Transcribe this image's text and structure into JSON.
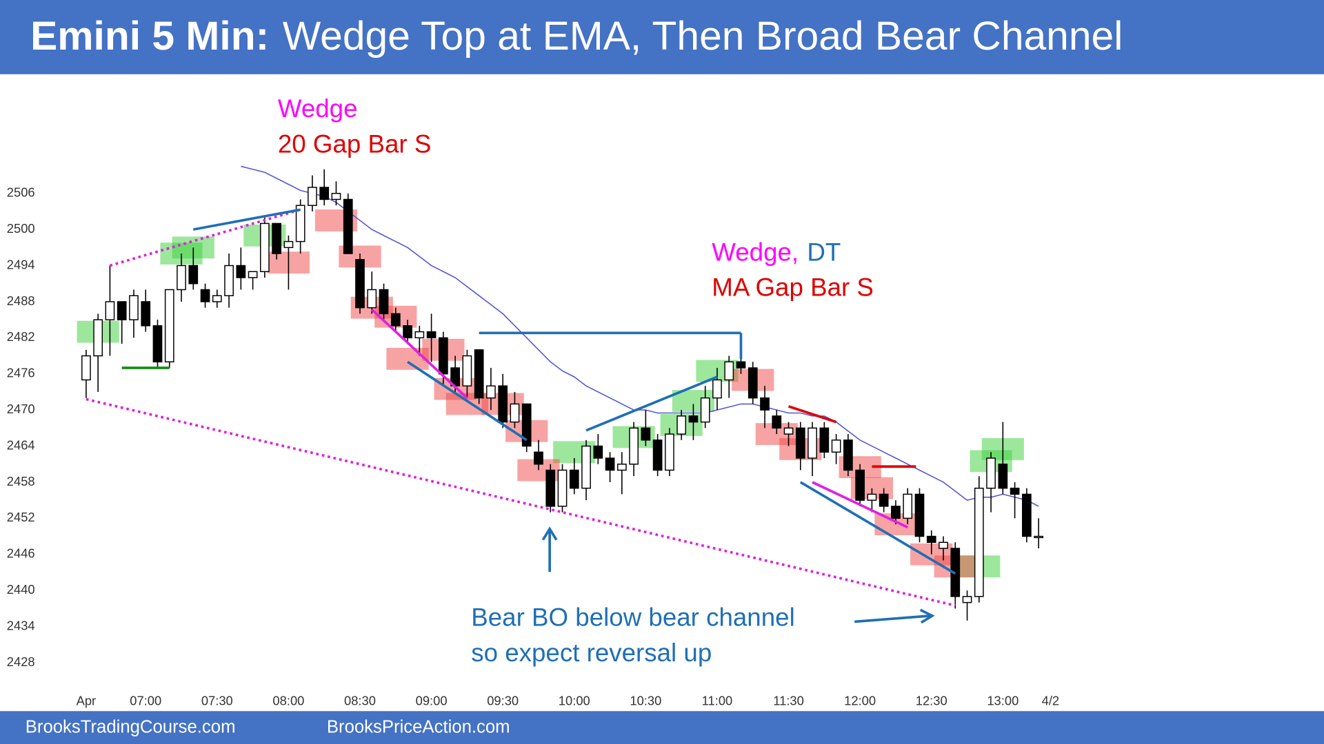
{
  "chart_data": {
    "type": "candlestick",
    "title_lead": "Emini 5 Min:",
    "title": "Wedge Top at EMA, Then Broad Bear Channel",
    "categories": [
      "Apr",
      null,
      null,
      null,
      null,
      "07:00",
      null,
      null,
      null,
      null,
      null,
      "07:30",
      null,
      null,
      null,
      null,
      null,
      "08:00",
      null,
      null,
      null,
      null,
      null,
      "08:30",
      null,
      null,
      null,
      null,
      null,
      "09:00",
      null,
      null,
      null,
      null,
      null,
      "09:30",
      null,
      null,
      null,
      null,
      null,
      "10:00",
      null,
      null,
      null,
      null,
      null,
      "10:30",
      null,
      null,
      null,
      null,
      null,
      "11:00",
      null,
      null,
      null,
      null,
      null,
      "11:30",
      null,
      null,
      null,
      null,
      null,
      "12:00",
      null,
      null,
      null,
      null,
      null,
      "12:30",
      null,
      null,
      null,
      null,
      null,
      "13:00",
      null,
      null,
      null
    ],
    "next_day_label": "4/2",
    "open": [
      2475,
      2479,
      2485,
      2488,
      2485,
      2488,
      2484,
      2478,
      2490,
      2494,
      2490,
      2488,
      2489,
      2494,
      2492,
      2493,
      2501,
      2497,
      2498,
      2504,
      2507,
      2505,
      2505,
      2495,
      2487,
      2490,
      2486,
      2484,
      2482,
      2483,
      2482,
      2477,
      2474,
      2480,
      2472,
      2474,
      2468,
      2471,
      2463,
      2460,
      2454,
      2460,
      2457,
      2464,
      2462,
      2460,
      2461,
      2467,
      2465,
      2460,
      2466,
      2469,
      2468,
      2472,
      2475,
      2478,
      2477,
      2472,
      2469,
      2466,
      2467,
      2462,
      2467,
      2463,
      2465,
      2460,
      2455,
      2456,
      2454,
      2452,
      2456,
      2449,
      2447,
      2447,
      2438,
      2439,
      2457,
      2461,
      2457,
      2456,
      2449
    ],
    "high": [
      2480,
      2486,
      2494,
      2488,
      2490,
      2490,
      2485,
      2490,
      2496,
      2497,
      2491,
      2490,
      2496,
      2497,
      2493,
      2502,
      2501,
      2499,
      2505,
      2509,
      2510,
      2508,
      2506,
      2496,
      2493,
      2491,
      2487,
      2485,
      2484,
      2486,
      2483,
      2479,
      2480,
      2480,
      2477,
      2476,
      2473,
      2471,
      2465,
      2461,
      2461,
      2462,
      2465,
      2466,
      2463,
      2463,
      2468,
      2470,
      2466,
      2467,
      2470,
      2471,
      2474,
      2477,
      2479,
      2481,
      2478,
      2474,
      2470,
      2468,
      2468,
      2468,
      2468,
      2466,
      2466,
      2461,
      2457,
      2457,
      2455,
      2457,
      2457,
      2450,
      2449,
      2448,
      2440,
      2459,
      2463,
      2468,
      2458,
      2457,
      2452
    ],
    "low": [
      2472,
      2473,
      2479,
      2481,
      2482,
      2483,
      2477,
      2477,
      2488,
      2490,
      2487,
      2487,
      2487,
      2490,
      2490,
      2492,
      2495,
      2490,
      2496,
      2503,
      2504,
      2504,
      2496,
      2486,
      2486,
      2485,
      2483,
      2481,
      2479,
      2478,
      2474,
      2473,
      2472,
      2471,
      2470,
      2467,
      2467,
      2463,
      2460,
      2453,
      2453,
      2456,
      2455,
      2461,
      2458,
      2456,
      2459,
      2464,
      2459,
      2459,
      2465,
      2465,
      2467,
      2470,
      2472,
      2476,
      2471,
      2467,
      2466,
      2464,
      2460,
      2459,
      2462,
      2461,
      2459,
      2454,
      2453,
      2453,
      2451,
      2451,
      2448,
      2446,
      2445,
      2437,
      2435,
      2438,
      2453,
      2456,
      2452,
      2448,
      2447
    ],
    "close": [
      2479,
      2485,
      2488,
      2485,
      2489,
      2484,
      2478,
      2490,
      2494,
      2491,
      2488,
      2489,
      2494,
      2492,
      2493,
      2501,
      2496,
      2498,
      2504,
      2507,
      2505,
      2506,
      2496,
      2487,
      2490,
      2486,
      2484,
      2482,
      2483,
      2482,
      2476,
      2474,
      2479,
      2472,
      2474,
      2468,
      2471,
      2464,
      2461,
      2454,
      2460,
      2457,
      2464,
      2462,
      2460,
      2461,
      2467,
      2465,
      2460,
      2466,
      2469,
      2468,
      2472,
      2475,
      2478,
      2477,
      2472,
      2470,
      2467,
      2467,
      2462,
      2467,
      2463,
      2465,
      2460,
      2455,
      2456,
      2454,
      2452,
      2456,
      2449,
      2448,
      2448,
      2439,
      2439,
      2457,
      2462,
      2457,
      2456,
      2449,
      2449
    ],
    "ema": {
      "color": "#5555dd",
      "values": [
        null,
        null,
        null,
        null,
        null,
        null,
        null,
        null,
        null,
        null,
        null,
        null,
        null,
        2510.5,
        2510,
        2509.5,
        2508.5,
        2507.5,
        2506.5,
        2506,
        2505.5,
        2504.5,
        2503,
        2501.5,
        2500,
        2499,
        2498,
        2497,
        2495.5,
        2494,
        2493,
        2492,
        2490.5,
        2489,
        2487.5,
        2486,
        2484,
        2482,
        2480,
        2478,
        2476.5,
        2475.5,
        2474,
        2473,
        2472,
        2471,
        2470,
        2470,
        2469.5,
        2469.5,
        2469.5,
        2469.5,
        2469.5,
        2470,
        2470.5,
        2471,
        2471,
        2470.5,
        2470,
        2469.5,
        2469.5,
        2469,
        2469,
        2468,
        2466.5,
        2465,
        2464,
        2463,
        2462,
        2461,
        2460,
        2459,
        2458,
        2456.5,
        2455,
        2455.5,
        2455.5,
        2456,
        2455.5,
        2455,
        2454
      ]
    },
    "ylim": [
      2425,
      2523
    ],
    "yticks": [
      2428,
      2434,
      2440,
      2446,
      2452,
      2458,
      2464,
      2470,
      2476,
      2482,
      2488,
      2494,
      2500,
      2506
    ],
    "grid": false,
    "boxes": [
      {
        "x": 1,
        "y": 2483,
        "color": "#3ccf3c"
      },
      {
        "x": 8,
        "y": 2496,
        "color": "#3ccf3c"
      },
      {
        "x": 9,
        "y": 2497,
        "color": "#3ccf3c"
      },
      {
        "x": 15,
        "y": 2499,
        "color": "#3ccf3c"
      },
      {
        "x": 41,
        "y": 2463,
        "color": "#3ccf3c"
      },
      {
        "x": 46,
        "y": 2465.5,
        "color": "#3ccf3c"
      },
      {
        "x": 50,
        "y": 2467.5,
        "color": "#3ccf3c"
      },
      {
        "x": 51,
        "y": 2471.5,
        "color": "#3ccf3c"
      },
      {
        "x": 53,
        "y": 2476.5,
        "color": "#3ccf3c"
      },
      {
        "x": 75,
        "y": 2444,
        "color": "#3ccf3c"
      },
      {
        "x": 76,
        "y": 2461.5,
        "color": "#3ccf3c"
      },
      {
        "x": 77,
        "y": 2463.5,
        "color": "#3ccf3c"
      },
      {
        "x": 17,
        "y": 2494.5,
        "color": "#f04848"
      },
      {
        "x": 21,
        "y": 2501.5,
        "color": "#f04848"
      },
      {
        "x": 23,
        "y": 2495.5,
        "color": "#f04848"
      },
      {
        "x": 24,
        "y": 2487,
        "color": "#f04848"
      },
      {
        "x": 26,
        "y": 2485.5,
        "color": "#f04848"
      },
      {
        "x": 27,
        "y": 2478.5,
        "color": "#f04848"
      },
      {
        "x": 30,
        "y": 2480,
        "color": "#f04848"
      },
      {
        "x": 31,
        "y": 2473.5,
        "color": "#f04848"
      },
      {
        "x": 32,
        "y": 2471,
        "color": "#f04848"
      },
      {
        "x": 35,
        "y": 2471,
        "color": "#f04848"
      },
      {
        "x": 37,
        "y": 2466.5,
        "color": "#f04848"
      },
      {
        "x": 38,
        "y": 2460,
        "color": "#f04848"
      },
      {
        "x": 56,
        "y": 2475,
        "color": "#f04848"
      },
      {
        "x": 58,
        "y": 2466,
        "color": "#f04848"
      },
      {
        "x": 60,
        "y": 2463.5,
        "color": "#f04848"
      },
      {
        "x": 65,
        "y": 2460.5,
        "color": "#f04848"
      },
      {
        "x": 66,
        "y": 2457,
        "color": "#f04848"
      },
      {
        "x": 68,
        "y": 2451,
        "color": "#f04848"
      },
      {
        "x": 71,
        "y": 2446,
        "color": "#f04848"
      },
      {
        "x": 73,
        "y": 2444,
        "color": "#f04848"
      }
    ],
    "lines": [
      {
        "x": [
          0,
          73
        ],
        "y": [
          2471.8,
          2437.5
        ],
        "color": "#e020e0",
        "style": "dotted"
      },
      {
        "x": [
          2,
          18
        ],
        "y": [
          2494,
          2503.3
        ],
        "color": "#e020e0",
        "style": "dotted"
      },
      {
        "x": [
          9,
          18
        ],
        "y": [
          2500,
          2503.3
        ],
        "color": "#1f6fb5",
        "style": "solid"
      },
      {
        "x": [
          3,
          7
        ],
        "y": [
          2477,
          2477
        ],
        "color": "#1a8a1a",
        "style": "solid"
      },
      {
        "x": [
          33,
          55
        ],
        "y": [
          2482.8,
          2482.8
        ],
        "color": "#1f6fb5",
        "style": "solid"
      },
      {
        "x": [
          55,
          55
        ],
        "y": [
          2482.8,
          2478.5
        ],
        "color": "#1f6fb5",
        "style": "solid"
      },
      {
        "x": [
          27,
          37
        ],
        "y": [
          2478,
          2465
        ],
        "color": "#1f6fb5",
        "style": "solid"
      },
      {
        "x": [
          24,
          32
        ],
        "y": [
          2486.7,
          2472
        ],
        "color": "#e020e0",
        "style": "solid"
      },
      {
        "x": [
          42,
          53
        ],
        "y": [
          2466.6,
          2475.5
        ],
        "color": "#1f6fb5",
        "style": "solid"
      },
      {
        "x": [
          59,
          63
        ],
        "y": [
          2470.6,
          2468
        ],
        "color": "#e00000",
        "style": "solid"
      },
      {
        "x": [
          66,
          69.7
        ],
        "y": [
          2460.6,
          2460.6
        ],
        "color": "#e00000",
        "style": "solid"
      },
      {
        "x": [
          60,
          73
        ],
        "y": [
          2458,
          2442.8
        ],
        "color": "#1f6fb5",
        "style": "solid"
      },
      {
        "x": [
          61,
          69
        ],
        "y": [
          2458,
          2450.5
        ],
        "color": "#e020e0",
        "style": "solid"
      }
    ],
    "annotations": [
      {
        "text": "Wedge",
        "color": "#ff00ff"
      },
      {
        "text": "20 Gap Bar S",
        "color": "#e00000"
      },
      {
        "text": "Wedge,",
        "color": "#ff00ff"
      },
      {
        "text": "DT",
        "color": "#1f6fb5"
      },
      {
        "text": "MA Gap Bar S",
        "color": "#e00000"
      },
      {
        "text": "Bear BO below bear channel",
        "color": "#1f6fb5"
      },
      {
        "text": "so expect reversal up",
        "color": "#1f6fb5"
      }
    ],
    "footer": [
      "BrooksTradingCourse.com",
      "BrooksPriceAction.com"
    ]
  }
}
